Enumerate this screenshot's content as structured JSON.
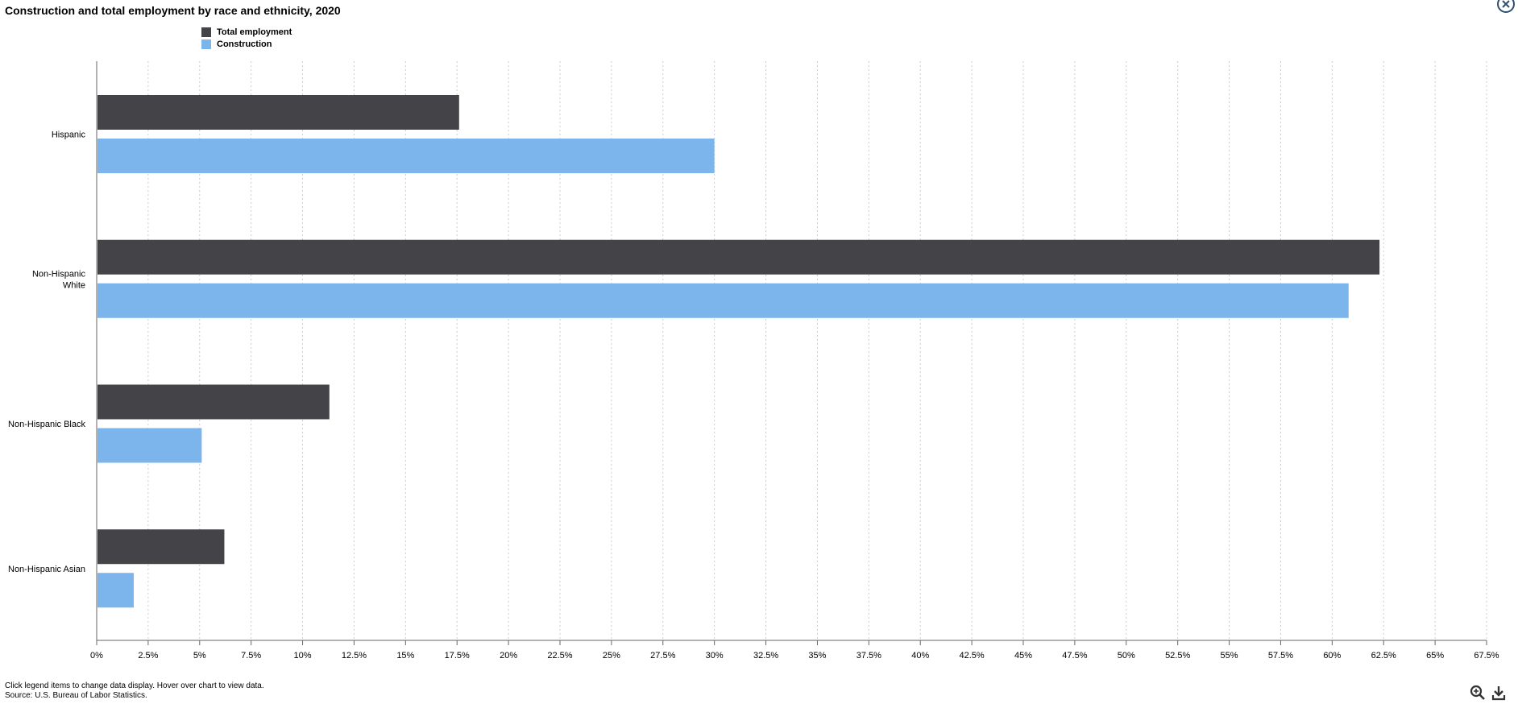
{
  "title": "Construction and total employment by race and ethnicity, 2020",
  "legend": {
    "items": [
      {
        "label": "Total employment",
        "color": "#434348"
      },
      {
        "label": "Construction",
        "color": "#7cb5ec"
      }
    ]
  },
  "footer": {
    "instructions": "Click legend items to change data display. Hover over chart to view data.",
    "source": "Source: U.S. Bureau of Labor Statistics."
  },
  "icons": {
    "close": "close-icon",
    "zoom": "zoom-icon",
    "download": "download-icon"
  },
  "chart_data": {
    "type": "bar",
    "orientation": "horizontal",
    "title": "Construction and total employment by race and ethnicity, 2020",
    "categories": [
      [
        "Hispanic"
      ],
      [
        "Non-Hispanic",
        "White"
      ],
      [
        "Non-Hispanic Black"
      ],
      [
        "Non-Hispanic Asian"
      ]
    ],
    "series": [
      {
        "name": "Total employment",
        "color": "#434348",
        "values": [
          17.6,
          62.3,
          11.3,
          6.2
        ]
      },
      {
        "name": "Construction",
        "color": "#7cb5ec",
        "values": [
          30.0,
          60.8,
          5.1,
          1.8
        ]
      }
    ],
    "xlim": [
      0,
      67.5
    ],
    "x_ticks": [
      "0%",
      "2.5%",
      "5%",
      "7.5%",
      "10%",
      "12.5%",
      "15%",
      "17.5%",
      "20%",
      "22.5%",
      "25%",
      "27.5%",
      "30%",
      "32.5%",
      "35%",
      "37.5%",
      "40%",
      "42.5%",
      "45%",
      "47.5%",
      "50%",
      "52.5%",
      "55%",
      "57.5%",
      "60%",
      "62.5%",
      "65%",
      "67.5%"
    ],
    "grid": true,
    "legend_position": "top-left"
  }
}
